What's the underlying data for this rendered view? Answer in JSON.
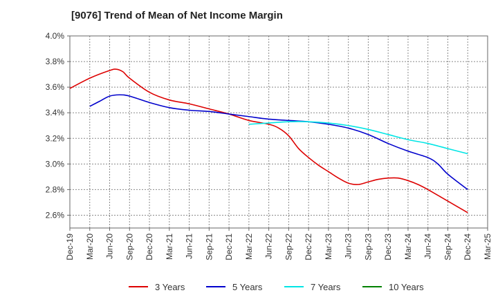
{
  "chart_data": {
    "type": "line",
    "title": "[9076]  Trend of Mean of Net Income Margin",
    "xlabel": "",
    "ylabel": "",
    "x_ticks": [
      "Dec-19",
      "Mar-20",
      "Jun-20",
      "Sep-20",
      "Dec-20",
      "Mar-21",
      "Jun-21",
      "Sep-21",
      "Dec-21",
      "Mar-22",
      "Jun-22",
      "Sep-22",
      "Dec-22",
      "Mar-23",
      "Jun-23",
      "Sep-23",
      "Dec-23",
      "Mar-24",
      "Jun-24",
      "Sep-24",
      "Dec-24",
      "Mar-25"
    ],
    "y_ticks": [
      "2.6%",
      "2.8%",
      "3.0%",
      "3.2%",
      "3.4%",
      "3.6%",
      "3.8%",
      "4.0%"
    ],
    "ylim": [
      2.5,
      4.0
    ],
    "grid": true,
    "legend_position": "bottom",
    "series": [
      {
        "name": "3 Years",
        "color": "#dd0000",
        "points": [
          [
            0,
            3.59
          ],
          [
            1,
            3.67
          ],
          [
            2,
            3.73
          ],
          [
            2.33,
            3.74
          ],
          [
            2.67,
            3.72
          ],
          [
            3,
            3.67
          ],
          [
            4,
            3.56
          ],
          [
            5,
            3.5
          ],
          [
            6,
            3.47
          ],
          [
            7,
            3.43
          ],
          [
            8,
            3.39
          ],
          [
            9,
            3.34
          ],
          [
            10,
            3.31
          ],
          [
            10.5,
            3.28
          ],
          [
            11,
            3.22
          ],
          [
            11.5,
            3.12
          ],
          [
            12,
            3.05
          ],
          [
            12.5,
            2.99
          ],
          [
            13,
            2.94
          ],
          [
            13.5,
            2.89
          ],
          [
            14,
            2.85
          ],
          [
            14.5,
            2.84
          ],
          [
            15,
            2.86
          ],
          [
            15.5,
            2.88
          ],
          [
            16,
            2.89
          ],
          [
            16.5,
            2.89
          ],
          [
            17,
            2.87
          ],
          [
            17.5,
            2.84
          ],
          [
            18,
            2.8
          ],
          [
            19,
            2.71
          ],
          [
            20,
            2.62
          ]
        ]
      },
      {
        "name": "5 Years",
        "color": "#0000cc",
        "points": [
          [
            1,
            3.45
          ],
          [
            1.5,
            3.49
          ],
          [
            2,
            3.53
          ],
          [
            2.5,
            3.54
          ],
          [
            3,
            3.53
          ],
          [
            4,
            3.48
          ],
          [
            5,
            3.44
          ],
          [
            6,
            3.42
          ],
          [
            7,
            3.41
          ],
          [
            8,
            3.39
          ],
          [
            9,
            3.37
          ],
          [
            10,
            3.35
          ],
          [
            11,
            3.34
          ],
          [
            12,
            3.33
          ],
          [
            13,
            3.31
          ],
          [
            14,
            3.28
          ],
          [
            15,
            3.23
          ],
          [
            16,
            3.16
          ],
          [
            17,
            3.1
          ],
          [
            18,
            3.05
          ],
          [
            18.5,
            3.0
          ],
          [
            19,
            2.92
          ],
          [
            20,
            2.8
          ]
        ]
      },
      {
        "name": "7 Years",
        "color": "#00e5e5",
        "points": [
          [
            9,
            3.31
          ],
          [
            10,
            3.32
          ],
          [
            11,
            3.33
          ],
          [
            12,
            3.33
          ],
          [
            13,
            3.32
          ],
          [
            14,
            3.3
          ],
          [
            15,
            3.27
          ],
          [
            16,
            3.23
          ],
          [
            17,
            3.19
          ],
          [
            18,
            3.16
          ],
          [
            19,
            3.12
          ],
          [
            20,
            3.08
          ]
        ]
      },
      {
        "name": "10 Years",
        "color": "#008000",
        "points": []
      }
    ]
  }
}
